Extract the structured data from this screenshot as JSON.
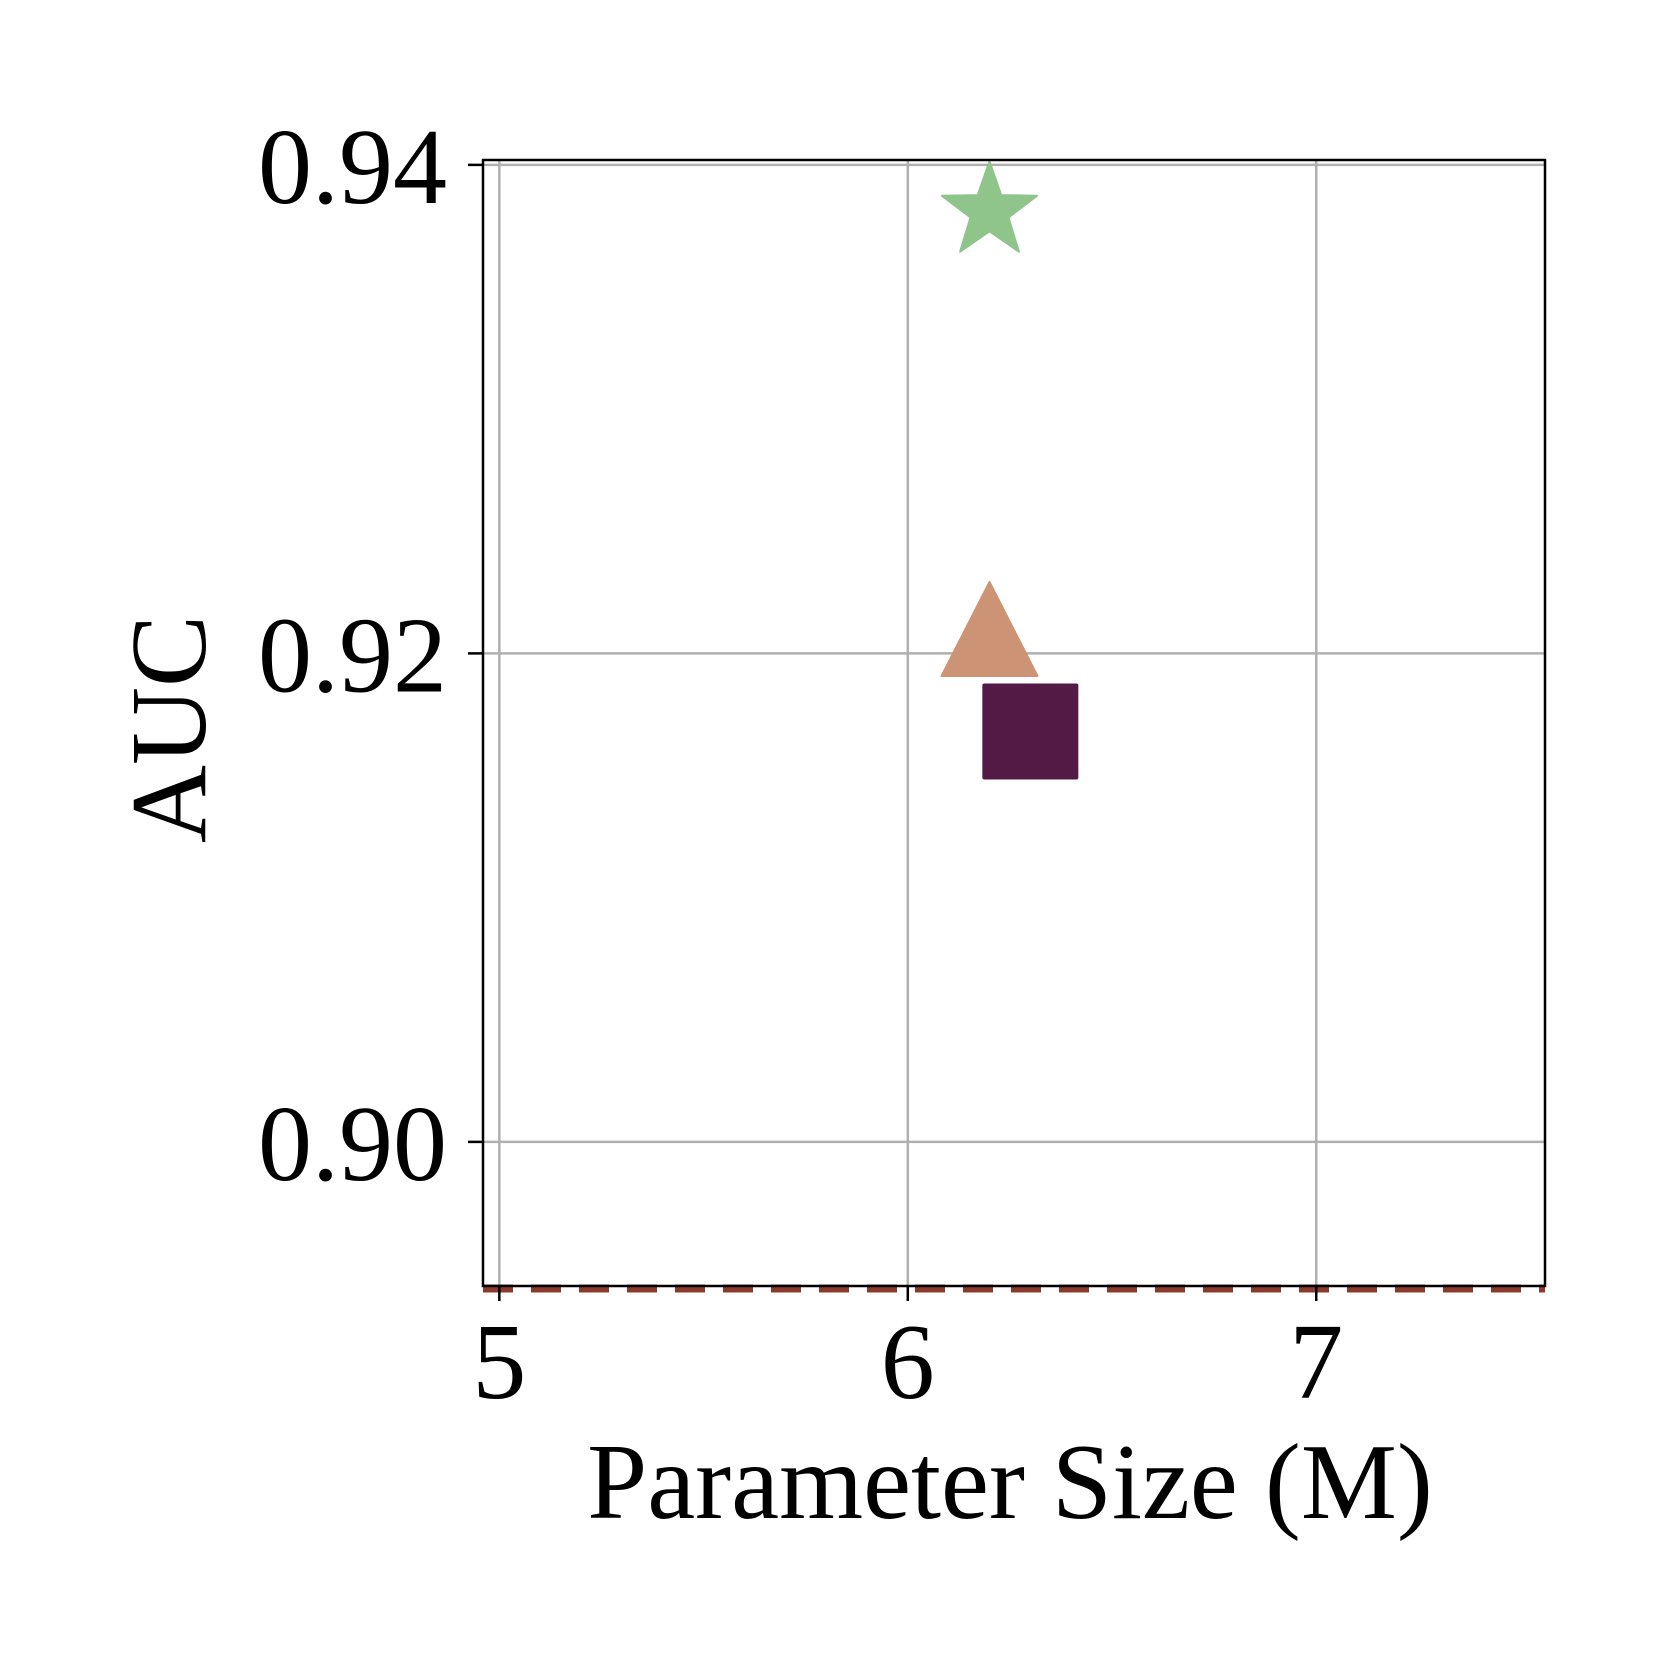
{
  "chart_data": {
    "type": "scatter",
    "title": "",
    "xlabel": "Parameter Size (M)",
    "ylabel": "AUC",
    "xlim": [
      4.96,
      7.56
    ],
    "ylim": [
      0.8941,
      0.9402
    ],
    "xticks": [
      5,
      6,
      7
    ],
    "xtick_labels": [
      "5",
      "6",
      "7"
    ],
    "yticks": [
      0.9,
      0.92,
      0.94
    ],
    "ytick_labels": [
      "0.90",
      "0.92",
      "0.94"
    ],
    "grid": true,
    "legend": "none",
    "points": [
      {
        "marker": "star",
        "x": 6.2,
        "y": 0.9381,
        "color": "#8fc48a"
      },
      {
        "marker": "triangle",
        "x": 6.2,
        "y": 0.921,
        "color": "#cc9375"
      },
      {
        "marker": "square",
        "x": 6.3,
        "y": 0.9168,
        "color": "#521a44"
      }
    ],
    "reference_line": {
      "orientation": "horizontal",
      "y": 0.894,
      "style": "dashed",
      "color": "#8c3a2b"
    }
  }
}
